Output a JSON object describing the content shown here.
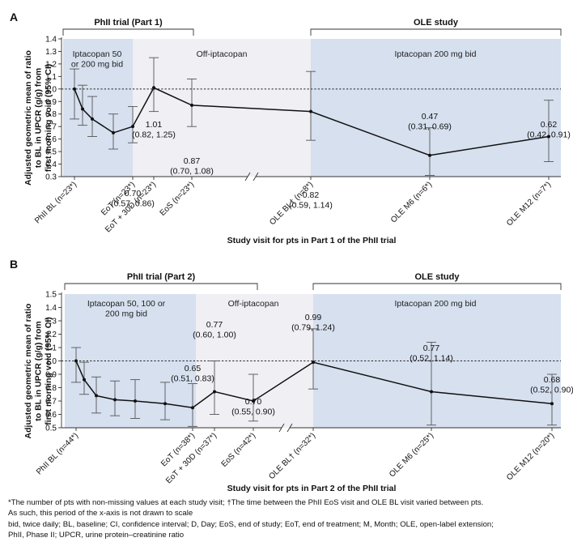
{
  "colors": {
    "blue_band": "#d6e0ef",
    "gray_band": "#efeff4",
    "line": "#111111",
    "errorbar": "#555555"
  },
  "panels": [
    {
      "letter": "A",
      "header_left": "PhII trial (Part 1)",
      "header_right": "OLE study",
      "band_labels": [
        "Iptacopan 50\nor 200 mg bid",
        "Off-iptacopan",
        "Iptacopan 200 mg bid"
      ],
      "x_title": "Study visit for pts in Part 1 of the PhII trial"
    },
    {
      "letter": "B",
      "header_left": "PhII trial (Part 2)",
      "header_right": "OLE study",
      "band_labels": [
        "Iptacopan 50, 100 or\n200 mg bid",
        "Off-iptacopan",
        "Iptacopan 200 mg bid"
      ],
      "x_title": "Study visit for pts in Part 2 of the PhII trial"
    }
  ],
  "chart_data": [
    {
      "type": "line",
      "ylabel": "Adjusted geometric mean of ratio\nto BL in UPCR (g/g) from\nfirst morning void (95% CI)",
      "xlabel": "Study visit for pts in Part 1 of the PhII trial",
      "ylim": [
        0.3,
        1.4
      ],
      "yticks": [
        "0.3",
        "0.4",
        "0.5",
        "0.6",
        "0.7",
        "0.8",
        "0.9",
        "1.0",
        "1.1",
        "1.2",
        "1.3",
        "1.4"
      ],
      "reference_line": 1.0,
      "axis_break": true,
      "tick_labels": [
        "PhII BL (n=23*)",
        "EoT (n=23*)",
        "EoT + 30D (n=23*)",
        "EoS (n=23*)",
        "OLE BL† (n=8*)",
        "OLE M6 (n=6*)",
        "OLE M12 (n=7*)"
      ],
      "points": [
        {
          "y": 1.0,
          "lo": 0.76,
          "hi": 1.16
        },
        {
          "y": 0.84,
          "lo": 0.71,
          "hi": 1.03
        },
        {
          "y": 0.76,
          "lo": 0.62,
          "hi": 0.94
        },
        {
          "y": 0.65,
          "lo": 0.52,
          "hi": 0.8
        },
        {
          "y": 0.7,
          "lo": 0.57,
          "hi": 0.86,
          "label": "0.70\n(0.57, 0.86)"
        },
        {
          "y": 1.01,
          "lo": 0.82,
          "hi": 1.25,
          "label": "1.01\n(0.82, 1.25)"
        },
        {
          "y": 0.87,
          "lo": 0.7,
          "hi": 1.08,
          "label": "0.87\n(0.70, 1.08)"
        },
        {
          "y": 0.82,
          "lo": 0.59,
          "hi": 1.14,
          "label": "0.82\n(0.59, 1.14)"
        },
        {
          "y": 0.47,
          "lo": 0.31,
          "hi": 0.69,
          "label": "0.47\n(0.31, 0.69)"
        },
        {
          "y": 0.62,
          "lo": 0.42,
          "hi": 0.91,
          "label": "0.62\n(0.42, 0.91)"
        }
      ]
    },
    {
      "type": "line",
      "ylabel": "Adjusted geometric mean of ratio\nto BL in UPCR (g/g) from\nfirst morning void (95% CI)",
      "xlabel": "Study visit for pts in Part 2 of the PhII trial",
      "ylim": [
        0.5,
        1.5
      ],
      "yticks": [
        "0.5",
        "0.6",
        "0.7",
        "0.8",
        "0.9",
        "1.0",
        "1.1",
        "1.2",
        "1.3",
        "1.4",
        "1.5"
      ],
      "reference_line": 1.0,
      "axis_break": true,
      "tick_labels": [
        "PhII BL (n=44*)",
        "EoT (n=38*)",
        "EoT + 30D (n=37*)",
        "EoS (n=42*)",
        "OLE BL† (n=32*)",
        "OLE M6 (n=25*)",
        "OLE M12 (n=20*)"
      ],
      "points": [
        {
          "y": 1.0,
          "lo": 0.84,
          "hi": 1.1
        },
        {
          "y": 0.86,
          "lo": 0.75,
          "hi": 0.99
        },
        {
          "y": 0.74,
          "lo": 0.61,
          "hi": 0.88
        },
        {
          "y": 0.71,
          "lo": 0.59,
          "hi": 0.85
        },
        {
          "y": 0.7,
          "lo": 0.57,
          "hi": 0.86
        },
        {
          "y": 0.68,
          "lo": 0.56,
          "hi": 0.84
        },
        {
          "y": 0.65,
          "lo": 0.51,
          "hi": 0.83,
          "label": "0.65\n(0.51, 0.83)"
        },
        {
          "y": 0.77,
          "lo": 0.6,
          "hi": 1.0,
          "label": "0.77\n(0.60, 1.00)"
        },
        {
          "y": 0.7,
          "lo": 0.55,
          "hi": 0.9,
          "label": "0.70\n(0.55, 0.90)"
        },
        {
          "y": 0.99,
          "lo": 0.79,
          "hi": 1.24,
          "label": "0.99\n(0.79, 1.24)"
        },
        {
          "y": 0.77,
          "lo": 0.52,
          "hi": 1.14,
          "label": "0.77\n(0.52, 1.14)"
        },
        {
          "y": 0.68,
          "lo": 0.52,
          "hi": 0.9,
          "label": "0.68\n(0.52, 0.90)"
        }
      ]
    }
  ],
  "footnotes": [
    "*The number of pts with non-missing values at each study visit; †The time between the PhII EoS visit and OLE BL visit varied between pts.",
    "As such, this period of the x-axis is not drawn to scale",
    "bid, twice daily; BL, baseline; CI, confidence interval; D, Day; EoS, end of study; EoT, end of treatment; M, Month; OLE, open-label extension;",
    "PhII, Phase II; UPCR, urine protein–creatinine ratio"
  ]
}
